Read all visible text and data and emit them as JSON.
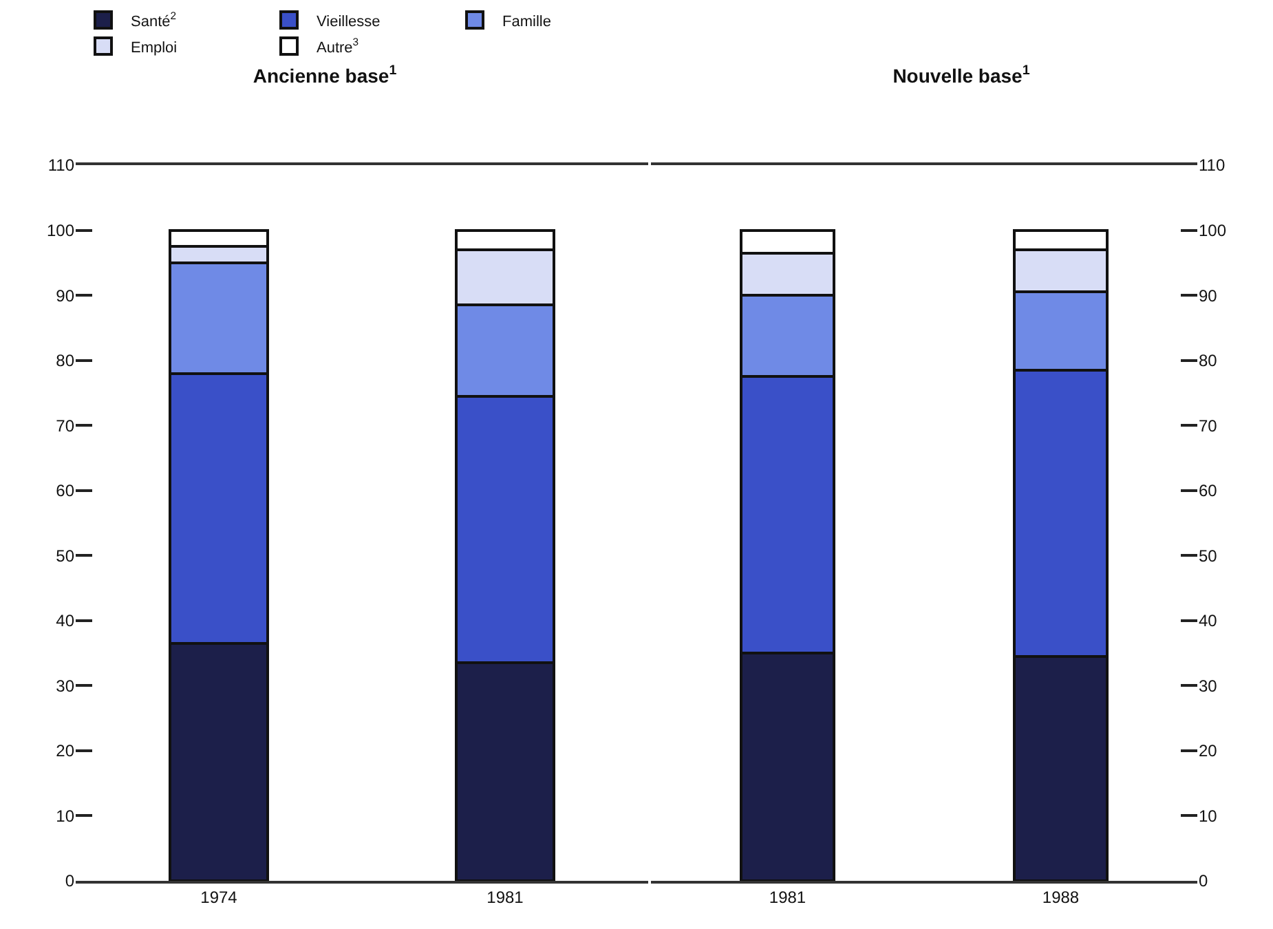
{
  "chart_data": [
    {
      "type": "bar",
      "title": "Ancienne base$^{1}$",
      "stacked": true,
      "categories": [
        "1974",
        "1981"
      ],
      "ylim": [
        0,
        110
      ],
      "yticks": [
        0,
        10,
        20,
        30,
        40,
        50,
        60,
        70,
        80,
        90,
        100,
        110
      ],
      "legend": "top",
      "grid": false,
      "series": [
        {
          "name": "Santé$^{2}$",
          "color": "#1c1f4a",
          "values": [
            36.5,
            33.5
          ]
        },
        {
          "name": "Vieillesse",
          "color": "#3a50c8",
          "values": [
            41.5,
            41
          ]
        },
        {
          "name": "Famille",
          "color": "#6f8ae6",
          "values": [
            17,
            14
          ]
        },
        {
          "name": "Emploi",
          "color": "#d8ddf6",
          "values": [
            2.5,
            8.5
          ]
        },
        {
          "name": "Autre$^{3}$",
          "color": "#ffffff",
          "values": [
            2.5,
            3
          ]
        }
      ]
    },
    {
      "type": "bar",
      "title": "Nouvelle base$^{1}$",
      "stacked": true,
      "categories": [
        "1981",
        "1988"
      ],
      "ylim": [
        0,
        110
      ],
      "yticks": [
        0,
        10,
        20,
        30,
        40,
        50,
        60,
        70,
        80,
        90,
        100,
        110
      ],
      "grid": false,
      "series": [
        {
          "color": "#1c1f4a",
          "values": [
            35,
            34.5
          ]
        },
        {
          "color": "#3a50c8",
          "values": [
            42.5,
            44
          ]
        },
        {
          "color": "#6f8ae6",
          "values": [
            12.5,
            12
          ]
        },
        {
          "color": "#d8ddf6",
          "values": [
            6.5,
            6.5
          ]
        },
        {
          "color": "#ffffff",
          "values": [
            3.5,
            3
          ]
        }
      ]
    }
  ]
}
